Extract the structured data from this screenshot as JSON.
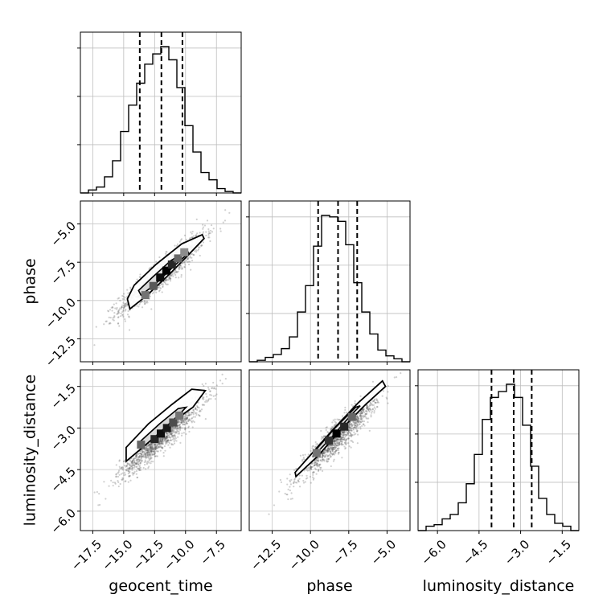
{
  "chart_data": {
    "type": "corner",
    "parameters": [
      "geocent_time",
      "phase",
      "luminosity_distance"
    ],
    "axis_labels": {
      "geocent_time": "geocent_time",
      "phase": "phase",
      "luminosity_distance": "luminosity_distance"
    },
    "ranges": {
      "geocent_time": [
        -18.5,
        -5.5
      ],
      "phase": [
        -14.0,
        -3.5
      ],
      "luminosity_distance": [
        -6.7,
        -0.9
      ]
    },
    "ticks": {
      "geocent_time": [
        -17.5,
        -15.0,
        -12.5,
        -10.0,
        -7.5
      ],
      "phase": [
        -12.5,
        -10.0,
        -7.5,
        -5.0
      ],
      "luminosity_distance": [
        -6.0,
        -4.5,
        -3.0,
        -1.5
      ]
    },
    "tick_labels": {
      "geocent_time": [
        "−17.5",
        "−15.0",
        "−12.5",
        "−10.0",
        "−7.5"
      ],
      "phase": [
        "−12.5",
        "−10.0",
        "−7.5",
        "−5.0"
      ],
      "luminosity_distance": [
        "−6.0",
        "−4.5",
        "−3.0",
        "−1.5"
      ]
    },
    "quantiles": {
      "geocent_time": [
        -13.7,
        -11.95,
        -10.25
      ],
      "phase": [
        -9.5,
        -8.2,
        -6.95
      ],
      "luminosity_distance": [
        -4.05,
        -3.25,
        -2.6
      ]
    },
    "histograms": {
      "geocent_time": {
        "edges": [
          -18.5,
          -17.85,
          -17.2,
          -16.55,
          -15.9,
          -15.25,
          -14.6,
          -13.95,
          -13.3,
          -12.65,
          -12.0,
          -11.35,
          -10.7,
          -10.05,
          -9.4,
          -8.75,
          -8.1,
          -7.45,
          -6.8,
          -6.15,
          -5.5
        ],
        "counts": [
          0,
          2,
          4,
          11,
          22,
          42,
          60,
          75,
          88,
          95,
          100,
          91,
          72,
          46,
          28,
          14,
          9,
          3,
          1,
          0
        ]
      },
      "phase": {
        "edges": [
          -14.0,
          -13.475,
          -12.95,
          -12.425,
          -11.9,
          -11.375,
          -10.85,
          -10.325,
          -9.8,
          -9.275,
          -8.75,
          -8.225,
          -7.7,
          -7.175,
          -6.65,
          -6.125,
          -5.6,
          -5.075,
          -4.55,
          -4.025,
          -3.5
        ],
        "counts": [
          0,
          1,
          3,
          5,
          9,
          17,
          34,
          52,
          79,
          100,
          99,
          96,
          80,
          54,
          34,
          19,
          8,
          4,
          2,
          0
        ]
      },
      "luminosity_distance": {
        "edges": [
          -6.7,
          -6.41,
          -6.12,
          -5.83,
          -5.54,
          -5.25,
          -4.96,
          -4.67,
          -4.38,
          -4.09,
          -3.8,
          -3.51,
          -3.22,
          -2.93,
          -2.64,
          -2.35,
          -2.06,
          -1.77,
          -1.48,
          -1.19,
          -0.9
        ],
        "counts": [
          0,
          3,
          4,
          8,
          11,
          19,
          32,
          52,
          76,
          91,
          95,
          100,
          91,
          72,
          44,
          22,
          11,
          5,
          3,
          0
        ]
      }
    },
    "pairs": [
      {
        "x": "geocent_time",
        "y": "phase",
        "mean": [
          -11.9,
          -8.3
        ],
        "contours": [
          [
            [
              -14.5,
              -10.55
            ],
            [
              -13.1,
              -9.65
            ],
            [
              -11.2,
              -8.2
            ],
            [
              -9.8,
              -7.05
            ],
            [
              -8.5,
              -5.95
            ],
            [
              -8.65,
              -5.7
            ],
            [
              -10.3,
              -6.3
            ],
            [
              -12.4,
              -7.65
            ],
            [
              -14.15,
              -9.0
            ],
            [
              -14.7,
              -9.9
            ],
            [
              -14.5,
              -10.55
            ]
          ],
          [
            [
              -13.6,
              -9.65
            ],
            [
              -12.4,
              -8.9
            ],
            [
              -11.0,
              -7.8
            ],
            [
              -9.75,
              -6.9
            ],
            [
              -9.85,
              -6.75
            ],
            [
              -11.2,
              -7.4
            ],
            [
              -12.7,
              -8.5
            ],
            [
              -13.8,
              -9.35
            ],
            [
              -13.6,
              -9.65
            ]
          ]
        ],
        "density_cells": [
          {
            "x": -13.25,
            "y": -9.65,
            "level": 0.55
          },
          {
            "x": -12.6,
            "y": -9.05,
            "level": 0.65
          },
          {
            "x": -12.05,
            "y": -8.5,
            "level": 0.95
          },
          {
            "x": -11.55,
            "y": -8.05,
            "level": 1.0
          },
          {
            "x": -11.1,
            "y": -7.65,
            "level": 0.85
          },
          {
            "x": -10.6,
            "y": -7.25,
            "level": 0.6
          },
          {
            "x": -10.1,
            "y": -6.85,
            "level": 0.45
          }
        ]
      },
      {
        "x": "geocent_time",
        "y": "luminosity_distance",
        "mean": [
          -11.9,
          -3.3
        ],
        "contours": [
          [
            [
              -14.8,
              -4.2
            ],
            [
              -13.2,
              -3.6
            ],
            [
              -11.3,
              -2.85
            ],
            [
              -9.4,
              -2.25
            ],
            [
              -8.4,
              -1.65
            ],
            [
              -9.5,
              -1.6
            ],
            [
              -11.1,
              -2.15
            ],
            [
              -13.0,
              -2.85
            ],
            [
              -14.8,
              -3.7
            ],
            [
              -14.8,
              -4.2
            ]
          ],
          [
            [
              -13.6,
              -3.75
            ],
            [
              -12.3,
              -3.25
            ],
            [
              -10.6,
              -2.55
            ],
            [
              -9.95,
              -2.25
            ],
            [
              -10.6,
              -2.3
            ],
            [
              -12.1,
              -2.85
            ],
            [
              -13.7,
              -3.5
            ],
            [
              -13.6,
              -3.75
            ]
          ]
        ],
        "density_cells": [
          {
            "x": -13.6,
            "y": -3.6,
            "level": 0.6
          },
          {
            "x": -12.5,
            "y": -3.4,
            "level": 0.85
          },
          {
            "x": -12.0,
            "y": -3.2,
            "level": 0.95
          },
          {
            "x": -11.5,
            "y": -3.0,
            "level": 0.9
          },
          {
            "x": -11.0,
            "y": -2.8,
            "level": 0.7
          },
          {
            "x": -10.5,
            "y": -2.55,
            "level": 0.55
          }
        ]
      },
      {
        "x": "phase",
        "y": "luminosity_distance",
        "mean": [
          -8.2,
          -3.3
        ],
        "contours": [
          [
            [
              -10.95,
              -4.75
            ],
            [
              -9.5,
              -4.0
            ],
            [
              -8.0,
              -3.05
            ],
            [
              -6.4,
              -2.15
            ],
            [
              -5.1,
              -1.5
            ],
            [
              -5.3,
              -1.3
            ],
            [
              -6.9,
              -2.1
            ],
            [
              -8.6,
              -3.1
            ],
            [
              -10.2,
              -4.1
            ],
            [
              -11.0,
              -4.6
            ],
            [
              -10.95,
              -4.75
            ]
          ],
          [
            [
              -9.85,
              -4.05
            ],
            [
              -8.65,
              -3.35
            ],
            [
              -7.3,
              -2.5
            ],
            [
              -6.75,
              -2.2
            ],
            [
              -7.05,
              -2.25
            ],
            [
              -8.4,
              -3.0
            ],
            [
              -9.75,
              -3.85
            ],
            [
              -9.85,
              -4.05
            ]
          ]
        ],
        "density_cells": [
          {
            "x": -9.6,
            "y": -3.9,
            "level": 0.55
          },
          {
            "x": -8.8,
            "y": -3.45,
            "level": 0.8
          },
          {
            "x": -8.3,
            "y": -3.2,
            "level": 1.0
          },
          {
            "x": -7.8,
            "y": -2.95,
            "level": 0.85
          },
          {
            "x": -7.3,
            "y": -2.6,
            "level": 0.6
          }
        ]
      }
    ]
  }
}
